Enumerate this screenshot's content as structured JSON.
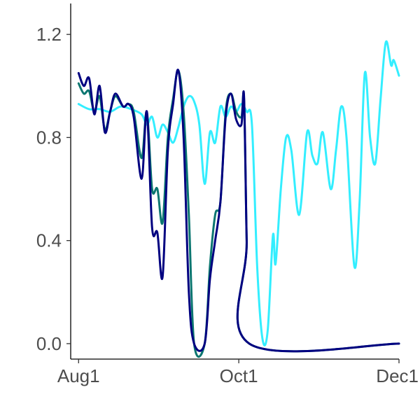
{
  "chart_data": {
    "type": "line",
    "title": "",
    "xlabel": "",
    "ylabel": "",
    "x_ticks": [
      {
        "label": "Aug1",
        "date": "2020-08-01"
      },
      {
        "label": "Oct1",
        "date": "2020-10-01"
      },
      {
        "label": "Dec1",
        "date": "2020-12-01"
      }
    ],
    "y_ticks": [
      0.0,
      0.4,
      0.8,
      1.2
    ],
    "y_tick_labels": [
      "0.0",
      "0.4",
      "0.8",
      "1.2"
    ],
    "xlim": [
      "2020-07-29",
      "2020-12-01"
    ],
    "ylim": [
      -0.06,
      1.32
    ],
    "grid": false,
    "legend": "none",
    "series": [
      {
        "color": "#33EEFF",
        "points": [
          [
            "2020-08-01",
            0.93
          ],
          [
            "2020-08-05",
            0.91
          ],
          [
            "2020-08-09",
            0.91
          ],
          [
            "2020-08-13",
            0.9
          ],
          [
            "2020-08-17",
            0.92
          ],
          [
            "2020-08-21",
            0.91
          ],
          [
            "2020-08-25",
            0.89
          ],
          [
            "2020-08-27",
            0.85
          ],
          [
            "2020-08-29",
            0.88
          ],
          [
            "2020-08-31",
            0.8
          ],
          [
            "2020-09-02",
            0.85
          ],
          [
            "2020-09-04",
            0.82
          ],
          [
            "2020-09-06",
            0.78
          ],
          [
            "2020-09-08",
            0.84
          ],
          [
            "2020-09-10",
            0.92
          ],
          [
            "2020-09-12",
            0.96
          ],
          [
            "2020-09-14",
            0.94
          ],
          [
            "2020-09-16",
            0.85
          ],
          [
            "2020-09-18",
            0.62
          ],
          [
            "2020-09-20",
            0.82
          ],
          [
            "2020-09-22",
            0.78
          ],
          [
            "2020-09-24",
            0.92
          ],
          [
            "2020-09-26",
            0.88
          ],
          [
            "2020-09-28",
            0.92
          ],
          [
            "2020-09-30",
            0.9
          ],
          [
            "2020-10-02",
            0.93
          ],
          [
            "2020-10-04",
            0.9
          ],
          [
            "2020-10-06",
            0.85
          ],
          [
            "2020-10-08",
            0.3
          ],
          [
            "2020-10-10",
            0.02
          ],
          [
            "2020-10-12",
            0.05
          ],
          [
            "2020-10-14",
            0.42
          ],
          [
            "2020-10-15",
            0.31
          ],
          [
            "2020-10-17",
            0.6
          ],
          [
            "2020-10-19",
            0.8
          ],
          [
            "2020-10-21",
            0.75
          ],
          [
            "2020-10-24",
            0.5
          ],
          [
            "2020-10-27",
            0.82
          ],
          [
            "2020-10-29",
            0.73
          ],
          [
            "2020-10-31",
            0.7
          ],
          [
            "2020-11-02",
            0.82
          ],
          [
            "2020-11-05",
            0.6
          ],
          [
            "2020-11-07",
            0.75
          ],
          [
            "2020-11-09",
            0.92
          ],
          [
            "2020-11-11",
            0.8
          ],
          [
            "2020-11-14",
            0.3
          ],
          [
            "2020-11-16",
            0.55
          ],
          [
            "2020-11-18",
            1.05
          ],
          [
            "2020-11-20",
            0.8
          ],
          [
            "2020-11-22",
            0.7
          ],
          [
            "2020-11-24",
            0.95
          ],
          [
            "2020-11-26",
            1.17
          ],
          [
            "2020-11-28",
            1.08
          ],
          [
            "2020-11-29",
            1.1
          ],
          [
            "2020-12-01",
            1.04
          ]
        ]
      },
      {
        "color": "#0B7670",
        "points": [
          [
            "2020-08-01",
            1.01
          ],
          [
            "2020-08-03",
            0.97
          ],
          [
            "2020-08-05",
            0.98
          ],
          [
            "2020-08-07",
            0.9
          ],
          [
            "2020-08-09",
            0.96
          ],
          [
            "2020-08-11",
            0.83
          ],
          [
            "2020-08-13",
            0.9
          ],
          [
            "2020-08-15",
            0.96
          ],
          [
            "2020-08-18",
            0.92
          ],
          [
            "2020-08-20",
            0.93
          ],
          [
            "2020-08-22",
            0.9
          ],
          [
            "2020-08-25",
            0.72
          ],
          [
            "2020-08-27",
            0.9
          ],
          [
            "2020-08-29",
            0.6
          ],
          [
            "2020-08-31",
            0.6
          ],
          [
            "2020-09-02",
            0.47
          ],
          [
            "2020-09-04",
            0.8
          ],
          [
            "2020-09-06",
            0.95
          ],
          [
            "2020-09-08",
            1.06
          ],
          [
            "2020-09-10",
            0.9
          ],
          [
            "2020-09-12",
            0.5
          ],
          [
            "2020-09-14",
            0.0
          ],
          [
            "2020-09-18",
            0.0
          ],
          [
            "2020-09-20",
            0.3
          ],
          [
            "2020-09-22",
            0.5
          ],
          [
            "2020-09-24",
            0.55
          ],
          [
            "2020-09-26",
            0.9
          ],
          [
            "2020-09-28",
            0.97
          ],
          [
            "2020-09-30",
            0.9
          ],
          [
            "2020-10-02",
            0.88
          ],
          [
            "2020-10-03",
            0.95
          ],
          [
            "2020-10-04",
            0.4
          ],
          [
            "2020-10-05",
            0.0
          ],
          [
            "2020-12-01",
            0.0
          ]
        ]
      },
      {
        "color": "#000080",
        "points": [
          [
            "2020-08-01",
            1.05
          ],
          [
            "2020-08-03",
            1.0
          ],
          [
            "2020-08-05",
            1.03
          ],
          [
            "2020-08-07",
            0.89
          ],
          [
            "2020-08-09",
            1.0
          ],
          [
            "2020-08-11",
            0.82
          ],
          [
            "2020-08-13",
            0.9
          ],
          [
            "2020-08-15",
            0.97
          ],
          [
            "2020-08-18",
            0.92
          ],
          [
            "2020-08-20",
            0.93
          ],
          [
            "2020-08-22",
            0.88
          ],
          [
            "2020-08-25",
            0.64
          ],
          [
            "2020-08-27",
            0.9
          ],
          [
            "2020-08-29",
            0.45
          ],
          [
            "2020-08-31",
            0.43
          ],
          [
            "2020-09-02",
            0.26
          ],
          [
            "2020-09-04",
            0.75
          ],
          [
            "2020-09-06",
            0.93
          ],
          [
            "2020-09-08",
            1.06
          ],
          [
            "2020-09-10",
            0.8
          ],
          [
            "2020-09-12",
            0.2
          ],
          [
            "2020-09-14",
            0.0
          ],
          [
            "2020-09-18",
            0.0
          ],
          [
            "2020-09-20",
            0.25
          ],
          [
            "2020-09-22",
            0.4
          ],
          [
            "2020-09-24",
            0.55
          ],
          [
            "2020-09-26",
            0.88
          ],
          [
            "2020-09-28",
            0.97
          ],
          [
            "2020-09-30",
            0.87
          ],
          [
            "2020-10-02",
            0.85
          ],
          [
            "2020-10-03",
            0.96
          ],
          [
            "2020-10-04",
            0.4
          ],
          [
            "2020-10-05",
            0.0
          ],
          [
            "2020-12-01",
            0.0
          ]
        ]
      }
    ]
  }
}
